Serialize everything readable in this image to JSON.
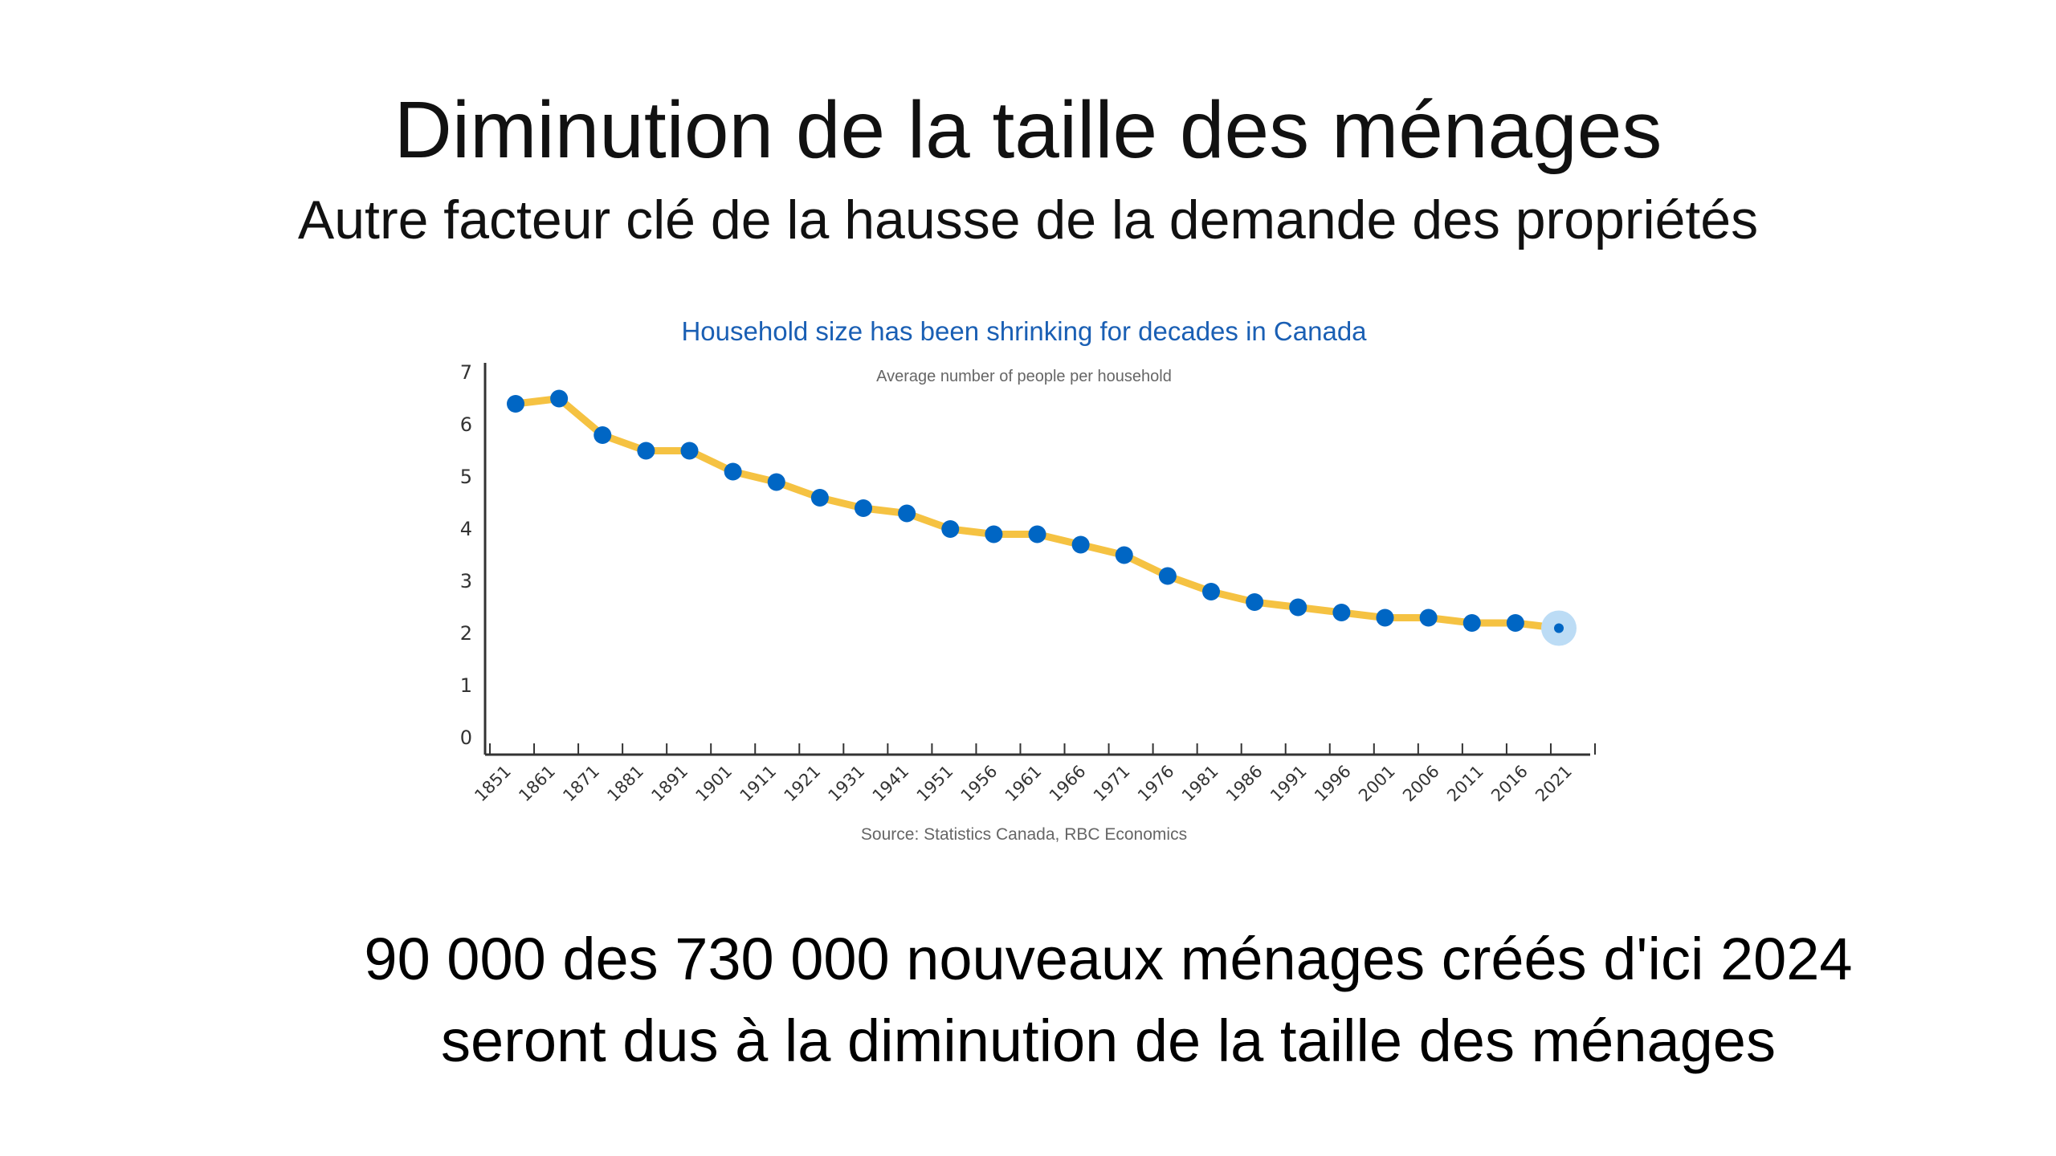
{
  "slide": {
    "title": "Diminution de la taille des ménages",
    "subtitle": "Autre facteur clé de la hausse de la demande des propriétés",
    "bottom_line1": "90 000 des 730 000 nouveaux ménages créés d'ici 2024",
    "bottom_line2": "seront dus à la diminution de la taille des ménages"
  },
  "chart_data": {
    "type": "line",
    "title": "Household size has been shrinking for decades in Canada",
    "subtitle": "Average number of people per household",
    "source": "Source: Statistics Canada, RBC Economics",
    "xlabel": "",
    "ylabel": "",
    "ylim": [
      0,
      7
    ],
    "yticks": [
      "0",
      "1",
      "2",
      "3",
      "4",
      "5",
      "6",
      "7"
    ],
    "categories": [
      "1851",
      "1861",
      "1871",
      "1881",
      "1891",
      "1901",
      "1911",
      "1921",
      "1931",
      "1941",
      "1951",
      "1956",
      "1961",
      "1966",
      "1971",
      "1976",
      "1981",
      "1986",
      "1991",
      "1996",
      "2001",
      "2006",
      "2011",
      "2016",
      "2021"
    ],
    "values": [
      6.4,
      6.5,
      5.8,
      5.5,
      5.5,
      5.1,
      4.9,
      4.6,
      4.4,
      4.3,
      4.0,
      3.9,
      3.9,
      3.7,
      3.5,
      3.1,
      2.8,
      2.6,
      2.5,
      2.4,
      2.3,
      2.3,
      2.2,
      2.2,
      2.1
    ],
    "grid": false,
    "colors": {
      "line": "#f5c242",
      "marker": "#0066c4",
      "highlight": "#bcdcf5",
      "title": "#1a5fb4",
      "text": "#555555"
    }
  }
}
